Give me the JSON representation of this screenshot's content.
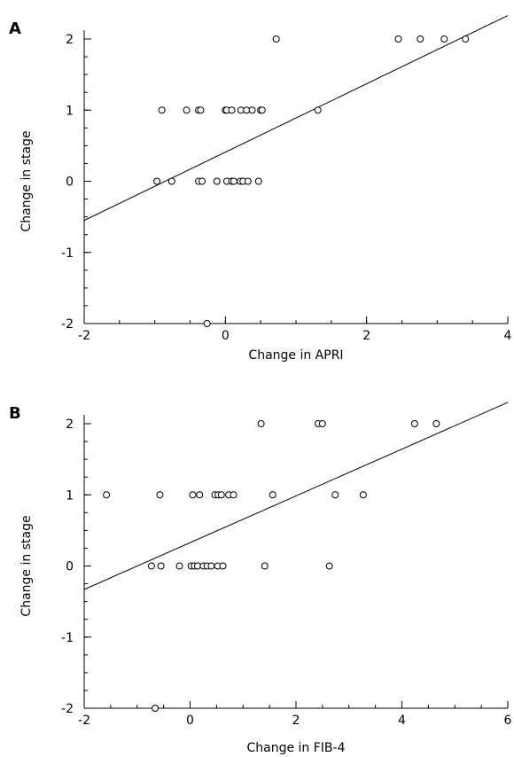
{
  "chart_data": [
    {
      "type": "scatter",
      "panel_label": "A",
      "xlabel": "Change in APRI",
      "ylabel": "Change in stage",
      "xlim": [
        -2,
        4
      ],
      "ylim": [
        -2,
        2
      ],
      "xticks": [
        -2,
        0,
        2,
        4
      ],
      "yticks": [
        -2,
        -1,
        0,
        1,
        2
      ],
      "x_minor_step": 0.5,
      "y_minor_step": 0.25,
      "points": [
        {
          "x": 0.72,
          "y": 2
        },
        {
          "x": 2.45,
          "y": 2
        },
        {
          "x": 2.76,
          "y": 2
        },
        {
          "x": 3.1,
          "y": 2
        },
        {
          "x": 3.4,
          "y": 2
        },
        {
          "x": -0.9,
          "y": 1
        },
        {
          "x": -0.55,
          "y": 1
        },
        {
          "x": -0.38,
          "y": 1
        },
        {
          "x": -0.35,
          "y": 1
        },
        {
          "x": 0.0,
          "y": 1
        },
        {
          "x": 0.02,
          "y": 1
        },
        {
          "x": 0.09,
          "y": 1
        },
        {
          "x": 0.22,
          "y": 1
        },
        {
          "x": 0.3,
          "y": 1
        },
        {
          "x": 0.38,
          "y": 1
        },
        {
          "x": 0.5,
          "y": 1
        },
        {
          "x": 0.52,
          "y": 1
        },
        {
          "x": 1.31,
          "y": 1
        },
        {
          "x": -0.97,
          "y": 0
        },
        {
          "x": -0.76,
          "y": 0
        },
        {
          "x": -0.38,
          "y": 0
        },
        {
          "x": -0.33,
          "y": 0
        },
        {
          "x": -0.12,
          "y": 0
        },
        {
          "x": 0.02,
          "y": 0
        },
        {
          "x": 0.09,
          "y": 0
        },
        {
          "x": 0.12,
          "y": 0
        },
        {
          "x": 0.21,
          "y": 0
        },
        {
          "x": 0.25,
          "y": 0
        },
        {
          "x": 0.32,
          "y": 0
        },
        {
          "x": 0.47,
          "y": 0
        },
        {
          "x": -0.26,
          "y": -2
        }
      ],
      "fit_line": {
        "x1": -2,
        "y1": -0.55,
        "x2": 4,
        "y2": 2.33
      }
    },
    {
      "type": "scatter",
      "panel_label": "B",
      "xlabel": "Change in FIB-4",
      "ylabel": "Change in stage",
      "xlim": [
        -2,
        6
      ],
      "ylim": [
        -2,
        2
      ],
      "xticks": [
        -2,
        0,
        2,
        4,
        6
      ],
      "yticks": [
        -2,
        -1,
        0,
        1,
        2
      ],
      "x_minor_step": 0.5,
      "y_minor_step": 0.25,
      "points": [
        {
          "x": 1.34,
          "y": 2
        },
        {
          "x": 2.42,
          "y": 2
        },
        {
          "x": 2.5,
          "y": 2
        },
        {
          "x": 4.24,
          "y": 2
        },
        {
          "x": 4.65,
          "y": 2
        },
        {
          "x": -1.58,
          "y": 1
        },
        {
          "x": -0.57,
          "y": 1
        },
        {
          "x": 0.05,
          "y": 1
        },
        {
          "x": 0.18,
          "y": 1
        },
        {
          "x": 0.47,
          "y": 1
        },
        {
          "x": 0.53,
          "y": 1
        },
        {
          "x": 0.59,
          "y": 1
        },
        {
          "x": 0.73,
          "y": 1
        },
        {
          "x": 0.82,
          "y": 1
        },
        {
          "x": 1.56,
          "y": 1
        },
        {
          "x": 2.74,
          "y": 1
        },
        {
          "x": 3.27,
          "y": 1
        },
        {
          "x": -0.73,
          "y": 0
        },
        {
          "x": -0.55,
          "y": 0
        },
        {
          "x": -0.2,
          "y": 0
        },
        {
          "x": 0.02,
          "y": 0
        },
        {
          "x": 0.08,
          "y": 0
        },
        {
          "x": 0.14,
          "y": 0
        },
        {
          "x": 0.25,
          "y": 0
        },
        {
          "x": 0.32,
          "y": 0
        },
        {
          "x": 0.4,
          "y": 0
        },
        {
          "x": 0.52,
          "y": 0
        },
        {
          "x": 0.62,
          "y": 0
        },
        {
          "x": 1.41,
          "y": 0
        },
        {
          "x": 2.63,
          "y": 0
        },
        {
          "x": -0.66,
          "y": -2
        }
      ],
      "fit_line": {
        "x1": -2,
        "y1": -0.33,
        "x2": 6,
        "y2": 2.3
      }
    }
  ]
}
